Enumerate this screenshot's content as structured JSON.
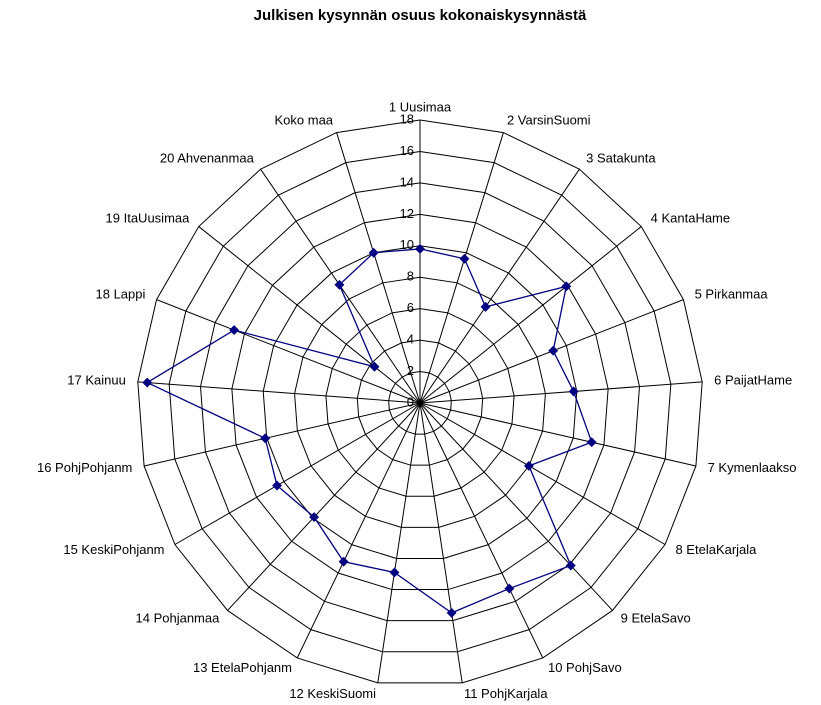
{
  "chart_data": {
    "type": "radar",
    "title": "Julkisen kysynnän osuus kokonaiskysynnästä",
    "categories": [
      "1 Uusimaa",
      "2 VarsinSuomi",
      "3 Satakunta",
      "4 KantaHame",
      "5 Pirkanmaa",
      "6 PaijatHame",
      "7 Kymenlaakso",
      "8 EtelaKarjala",
      "9 EtelaSavo",
      "10 PohjSavo",
      "11 PohjKarjala",
      "12 KeskiSuomi",
      "13 EtelaPohjanm",
      "14 Pohjanmaa",
      "15 KeskiPohjanm",
      "16 PohjPohjanm",
      "17 Kainuu",
      "18 Lappi",
      "19 ItaUusimaa",
      "20 Ahvenanmaa",
      "Koko maa"
    ],
    "values": [
      9.8,
      9.6,
      7.4,
      11.9,
      9.1,
      9.8,
      11.2,
      8.0,
      14.1,
      13.1,
      13.5,
      10.9,
      11.2,
      9.9,
      10.5,
      10.1,
      17.4,
      12.7,
      3.7,
      9.1,
      10.0
    ],
    "color": "#000080",
    "ylim": [
      0,
      18
    ],
    "yticks": [
      0,
      2,
      4,
      6,
      8,
      10,
      12,
      14,
      16,
      18
    ],
    "grid": true
  }
}
